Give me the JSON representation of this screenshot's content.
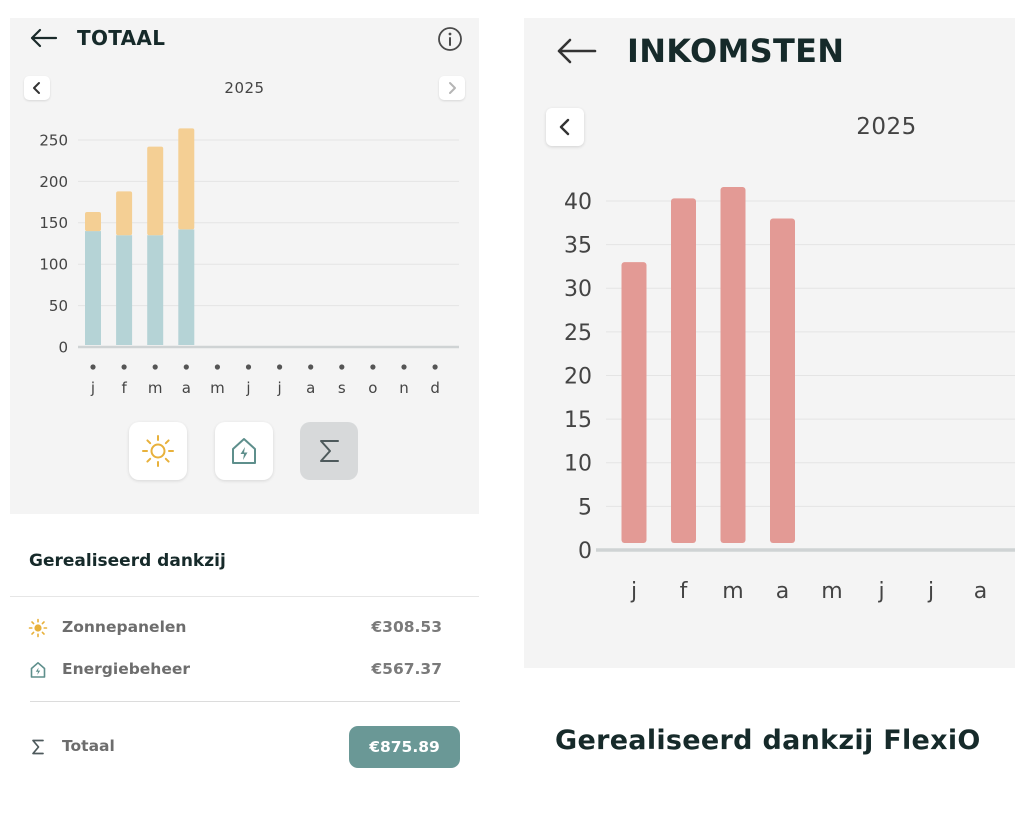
{
  "left": {
    "title": "TOTAAL",
    "year": "2025",
    "chart_data": {
      "type": "bar",
      "stacked": true,
      "categories": [
        "j",
        "f",
        "m",
        "a",
        "m",
        "j",
        "j",
        "a",
        "s",
        "o",
        "n",
        "d"
      ],
      "series": [
        {
          "color": "#b5d3d6",
          "values": [
            140,
            135,
            135,
            142,
            null,
            null,
            null,
            null,
            null,
            null,
            null,
            null
          ]
        },
        {
          "color": "#f4cf94",
          "values": [
            23,
            53,
            107,
            122,
            null,
            null,
            null,
            null,
            null,
            null,
            null,
            null
          ]
        }
      ],
      "ylim": [
        0,
        250
      ],
      "yticks": [
        "250",
        "200",
        "150",
        "100",
        "50",
        "0"
      ],
      "grid": true
    },
    "toggles": [
      {
        "icon": "sun-icon"
      },
      {
        "icon": "house-bolt-icon"
      },
      {
        "icon": "sigma-icon",
        "selected": true
      }
    ],
    "section_title": "Gerealiseerd dankzij",
    "rows": [
      {
        "icon": "sun-icon",
        "label": "Zonnepanelen",
        "value": "€308.53"
      },
      {
        "icon": "house-bolt-icon",
        "label": "Energiebeheer",
        "value": "€567.37"
      }
    ],
    "total": {
      "icon": "sigma-icon",
      "label": "Totaal",
      "value": "€875.89"
    }
  },
  "right": {
    "title": "INKOMSTEN",
    "year": "2025",
    "chart_data": {
      "type": "bar",
      "categories": [
        "j",
        "f",
        "m",
        "a",
        "m",
        "j",
        "j",
        "a"
      ],
      "series": [
        {
          "color": "#e39a95",
          "values": [
            33,
            40.3,
            41.6,
            38,
            null,
            null,
            null,
            null
          ]
        }
      ],
      "ylim": [
        0,
        40
      ],
      "yticks": [
        "40",
        "35",
        "30",
        "25",
        "20",
        "15",
        "10",
        "5",
        "0"
      ],
      "grid": true
    },
    "section_title": "Gerealiseerd dankzij FlexiO"
  },
  "colors": {
    "accent": "#6a9896",
    "sun": "#e8b13b",
    "house": "#5e8f8c",
    "panel_bg": "#f4f4f4"
  }
}
